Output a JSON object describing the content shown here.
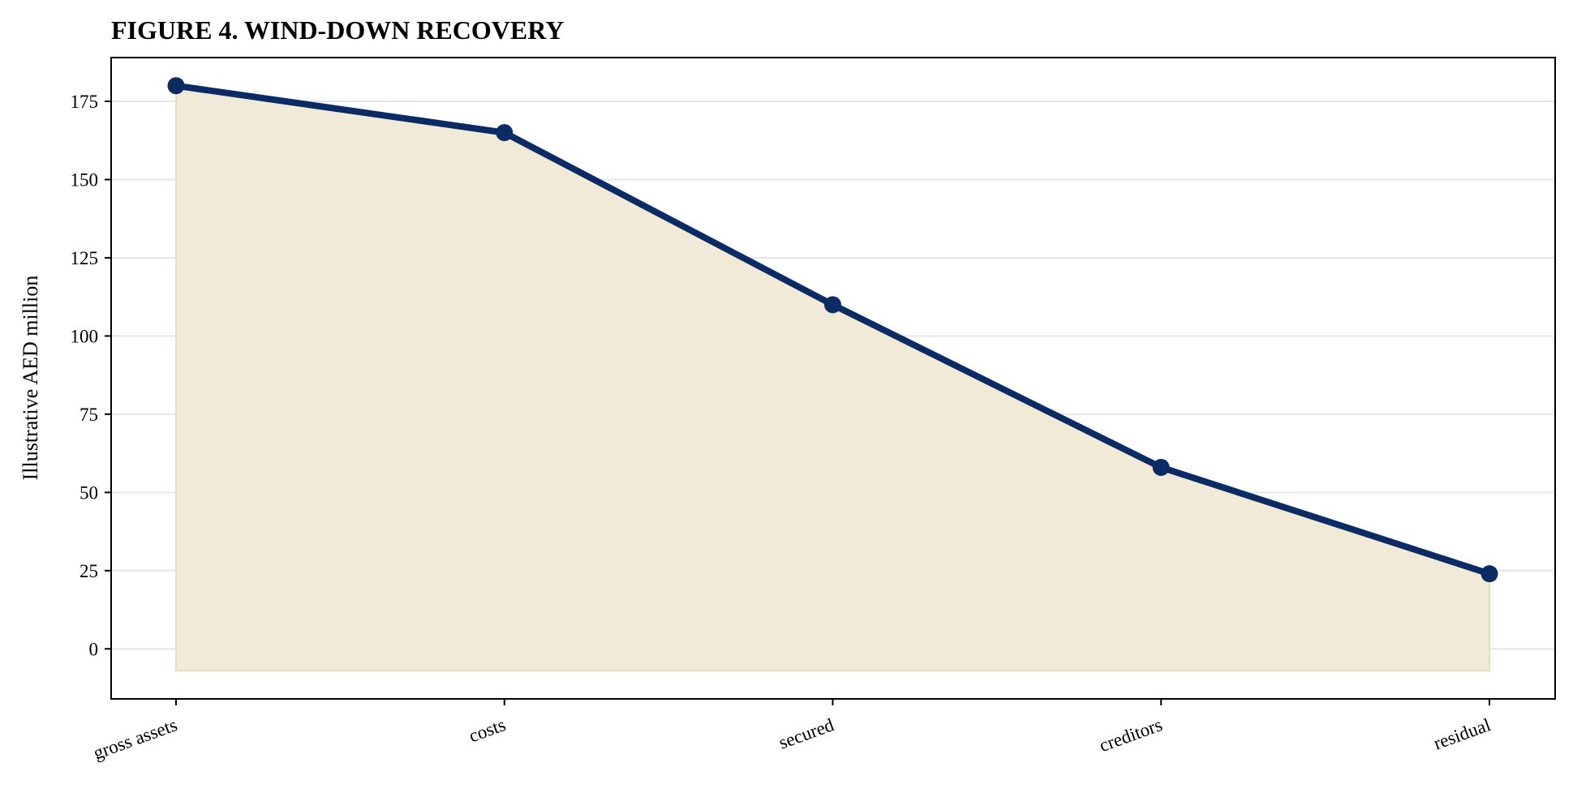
{
  "chart_data": {
    "type": "area",
    "title": "FIGURE 4. WIND-DOWN RECOVERY",
    "xlabel": "",
    "ylabel": "Illustrative AED million",
    "categories": [
      "gross assets",
      "costs",
      "secured",
      "creditors",
      "residual"
    ],
    "values": [
      180,
      165,
      110,
      58,
      24
    ],
    "area_baseline": -7,
    "ylim": [
      -16,
      189
    ],
    "yticks": [
      0,
      25,
      50,
      75,
      100,
      125,
      150,
      175
    ],
    "grid": "horizontal",
    "legend": "none",
    "colors": {
      "line": "#0b2b64",
      "fill": "#f2ead9",
      "fill_edge": "#e8dcc0",
      "grid": "#e6e6e6"
    }
  }
}
